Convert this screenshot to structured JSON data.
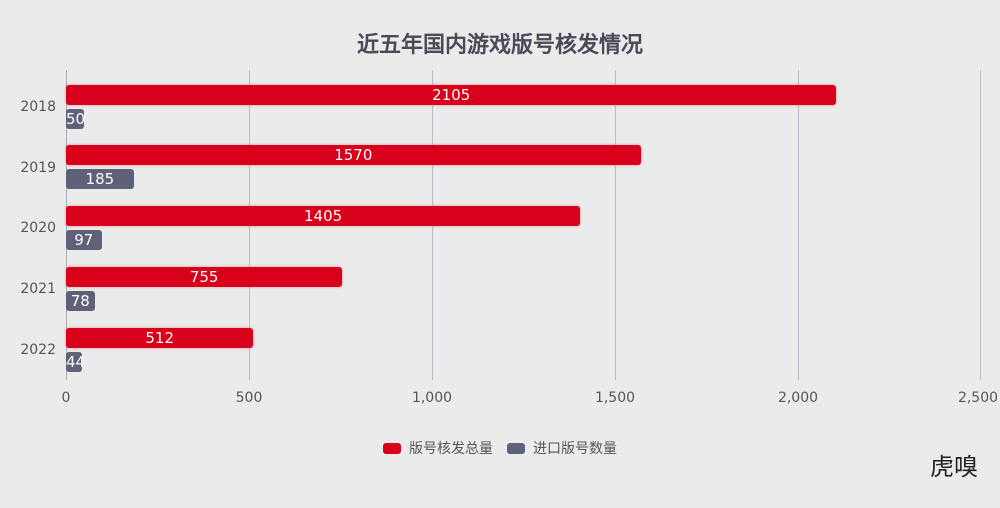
{
  "chart_data": {
    "type": "bar",
    "orientation": "horizontal",
    "title": "近五年国内游戏版号核发情况",
    "categories": [
      "2018",
      "2019",
      "2020",
      "2021",
      "2022"
    ],
    "series": [
      {
        "name": "版号核发总量",
        "color": "#d9001b",
        "values": [
          2105,
          1570,
          1405,
          755,
          512
        ]
      },
      {
        "name": "进口版号数量",
        "color": "#5f6178",
        "values": [
          50,
          185,
          97,
          78,
          44
        ]
      }
    ],
    "xlim": [
      0,
      2500
    ],
    "xticks": [
      "0",
      "500",
      "1,000",
      "1,500",
      "2,000",
      "2,500"
    ],
    "xlabel": "",
    "ylabel": "",
    "grid": "vertical",
    "legend_position": "bottom"
  },
  "branding": {
    "logo_text": "虎嗅"
  }
}
